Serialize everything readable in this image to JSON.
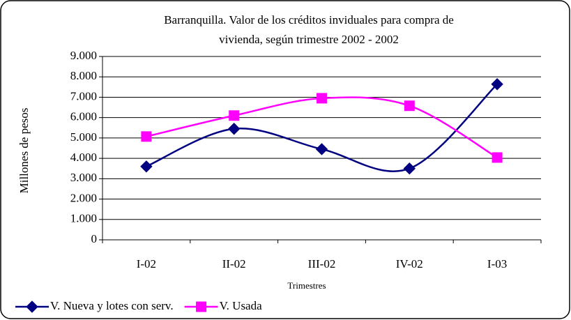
{
  "chart_data": {
    "type": "line",
    "title": [
      "Barranquilla. Valor de los créditos inviduales para compra de",
      "vivienda, según trimestre 2002 - 2002"
    ],
    "x_label": "Trimestres",
    "y_label": "Millones de pesos",
    "categories": [
      "I-02",
      "II-02",
      "III-02",
      "IV-02",
      "I-03"
    ],
    "series": [
      {
        "name": "V. Nueva y lotes con serv.",
        "color": "#000080",
        "marker": "diamond",
        "values": [
          3600,
          5450,
          4450,
          3500,
          7640
        ]
      },
      {
        "name": "V. Usada",
        "color": "#ff00ff",
        "marker": "square",
        "values": [
          5070,
          6100,
          6950,
          6580,
          4040
        ]
      }
    ],
    "ylim": [
      0,
      9000
    ],
    "yticks": [
      0,
      {
        "value": 1000,
        "label": "1.000"
      },
      {
        "value": 2000,
        "label": "2.000"
      },
      {
        "value": 3000,
        "label": "3.000"
      },
      {
        "value": 4000,
        "label": "4.000"
      },
      {
        "value": 5000,
        "label": "5.000"
      },
      {
        "value": 6000,
        "label": "6.000"
      },
      {
        "value": 7000,
        "label": "7.000"
      },
      {
        "value": 8000,
        "label": "8.000"
      },
      {
        "value": 9000,
        "label": "9.000"
      }
    ],
    "grid": true,
    "smooth": true,
    "legend": "bottom-left"
  }
}
